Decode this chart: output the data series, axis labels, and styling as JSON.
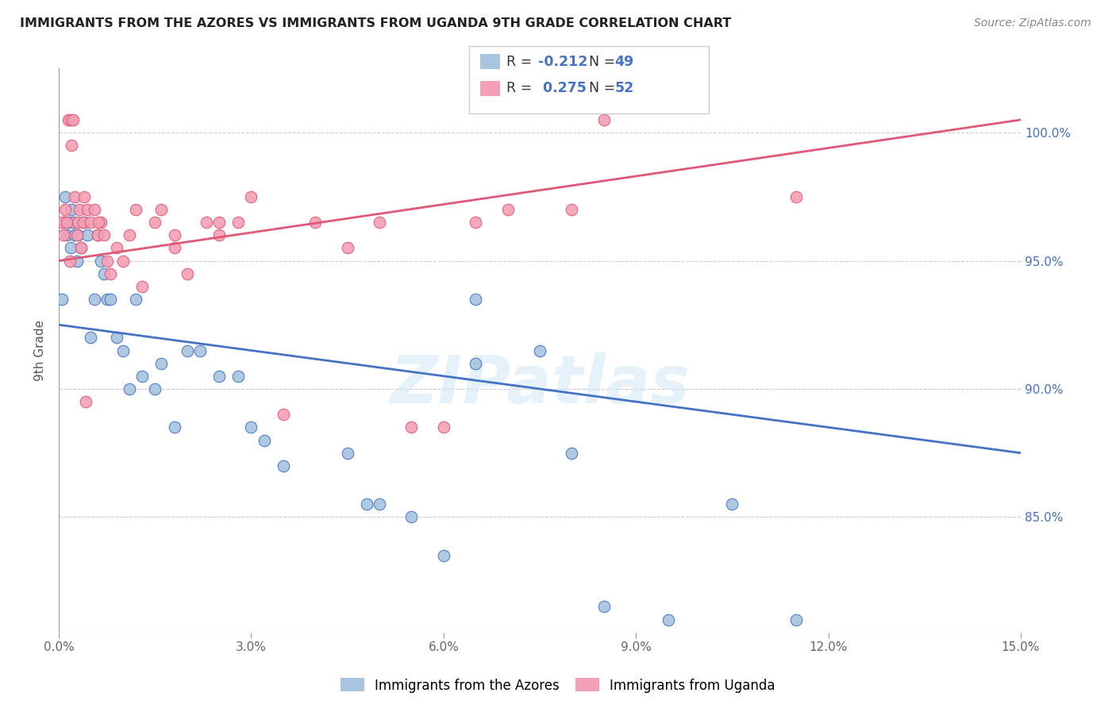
{
  "title": "IMMIGRANTS FROM THE AZORES VS IMMIGRANTS FROM UGANDA 9TH GRADE CORRELATION CHART",
  "source": "Source: ZipAtlas.com",
  "ylabel": "9th Grade",
  "y_ticks": [
    85.0,
    90.0,
    95.0,
    100.0
  ],
  "y_tick_labels": [
    "85.0%",
    "90.0%",
    "95.0%",
    "100.0%"
  ],
  "x_ticks": [
    0.0,
    3.0,
    6.0,
    9.0,
    12.0,
    15.0
  ],
  "xlim": [
    0.0,
    15.0
  ],
  "ylim": [
    80.5,
    102.5
  ],
  "watermark": "ZIPatlas",
  "azores_color": "#a8c4e0",
  "uganda_color": "#f4a0b4",
  "azores_line_color": "#4472c4",
  "uganda_line_color": "#e05878",
  "azores_x": [
    0.05,
    0.08,
    0.1,
    0.12,
    0.15,
    0.18,
    0.2,
    0.22,
    0.25,
    0.28,
    0.3,
    0.35,
    0.4,
    0.45,
    0.5,
    0.55,
    0.6,
    0.65,
    0.7,
    0.75,
    0.8,
    0.9,
    1.0,
    1.1,
    1.2,
    1.3,
    1.5,
    1.6,
    1.8,
    2.0,
    2.2,
    2.5,
    2.8,
    3.0,
    3.2,
    3.5,
    4.5,
    4.8,
    5.0,
    5.5,
    6.0,
    6.5,
    7.5,
    8.0,
    8.5,
    9.5,
    10.5,
    6.5,
    11.5
  ],
  "azores_y": [
    93.5,
    96.5,
    97.5,
    96.0,
    96.5,
    95.5,
    97.0,
    96.5,
    96.0,
    95.0,
    96.0,
    95.5,
    96.5,
    96.0,
    92.0,
    93.5,
    96.0,
    95.0,
    94.5,
    93.5,
    93.5,
    92.0,
    91.5,
    90.0,
    93.5,
    90.5,
    90.0,
    91.0,
    88.5,
    91.5,
    91.5,
    90.5,
    90.5,
    88.5,
    88.0,
    87.0,
    87.5,
    85.5,
    85.5,
    85.0,
    83.5,
    91.0,
    91.5,
    87.5,
    81.5,
    81.0,
    85.5,
    93.5,
    81.0
  ],
  "uganda_x": [
    0.05,
    0.07,
    0.1,
    0.12,
    0.15,
    0.18,
    0.2,
    0.22,
    0.25,
    0.28,
    0.3,
    0.32,
    0.35,
    0.38,
    0.4,
    0.45,
    0.5,
    0.55,
    0.6,
    0.65,
    0.7,
    0.75,
    0.8,
    0.9,
    1.0,
    1.1,
    1.2,
    1.3,
    1.5,
    1.6,
    1.8,
    2.0,
    2.3,
    2.5,
    2.8,
    3.0,
    3.5,
    4.0,
    4.5,
    5.0,
    5.5,
    6.0,
    6.5,
    7.0,
    8.0,
    0.17,
    0.42,
    0.62,
    1.8,
    2.5,
    8.5,
    11.5
  ],
  "uganda_y": [
    96.5,
    96.0,
    97.0,
    96.5,
    100.5,
    100.5,
    99.5,
    100.5,
    97.5,
    96.0,
    96.5,
    97.0,
    95.5,
    96.5,
    97.5,
    97.0,
    96.5,
    97.0,
    96.0,
    96.5,
    96.0,
    95.0,
    94.5,
    95.5,
    95.0,
    96.0,
    97.0,
    94.0,
    96.5,
    97.0,
    95.5,
    94.5,
    96.5,
    96.0,
    96.5,
    97.5,
    89.0,
    96.5,
    95.5,
    96.5,
    88.5,
    88.5,
    96.5,
    97.0,
    97.0,
    95.0,
    89.5,
    96.5,
    96.0,
    96.5,
    100.5,
    97.5
  ],
  "azores_line_x0": 0.0,
  "azores_line_y0": 92.5,
  "azores_line_x1": 15.0,
  "azores_line_y1": 87.5,
  "uganda_line_x0": 0.0,
  "uganda_line_y0": 95.0,
  "uganda_line_x1": 15.0,
  "uganda_line_y1": 100.5
}
